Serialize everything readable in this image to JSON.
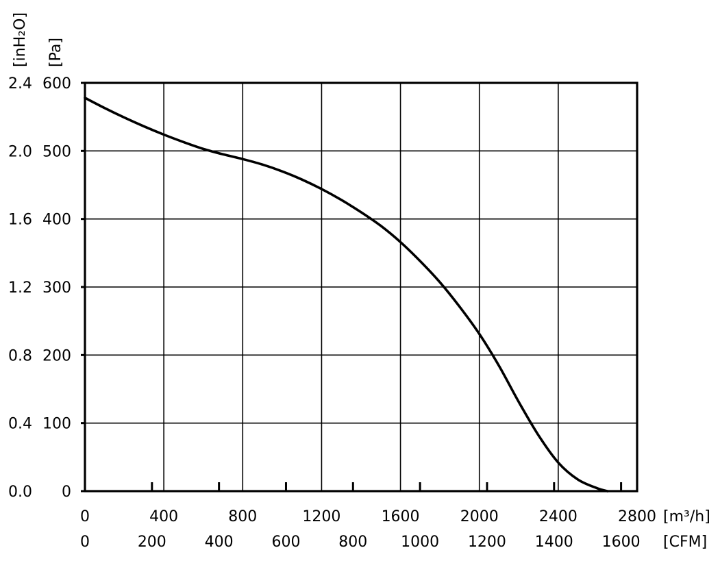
{
  "chart_data": {
    "type": "line",
    "title": "",
    "x_axis_primary": {
      "unit_label": "[m³/h]",
      "range": [
        0,
        2800
      ],
      "ticks": [
        "0",
        "400",
        "800",
        "1200",
        "1600",
        "2000",
        "2400",
        "2800"
      ],
      "tick_values": [
        0,
        400,
        800,
        1200,
        1600,
        2000,
        2400,
        2800
      ]
    },
    "x_axis_secondary": {
      "unit_label": "[CFM]",
      "ticks": [
        "0",
        "200",
        "400",
        "600",
        "800",
        "1000",
        "1200",
        "1400",
        "1600"
      ],
      "tick_values": [
        0,
        200,
        400,
        600,
        800,
        1000,
        1200,
        1400,
        1600
      ]
    },
    "y_axis_primary": {
      "unit_label": "[Pa]",
      "range": [
        0,
        600
      ],
      "ticks": [
        "0",
        "100",
        "200",
        "300",
        "400",
        "500",
        "600"
      ],
      "tick_values": [
        0,
        100,
        200,
        300,
        400,
        500,
        600
      ]
    },
    "y_axis_secondary": {
      "unit_label": "[inH₂O]",
      "ticks": [
        "0.0",
        "0.4",
        "0.8",
        "1.2",
        "1.6",
        "2.0",
        "2.4"
      ],
      "tick_values": [
        0.0,
        0.4,
        0.8,
        1.2,
        1.6,
        2.0,
        2.4
      ]
    },
    "grid": true,
    "series": [
      {
        "x": [
          0,
          100,
          200,
          300,
          400,
          500,
          600,
          700,
          800,
          900,
          1000,
          1100,
          1200,
          1300,
          1400,
          1500,
          1600,
          1700,
          1800,
          1900,
          2000,
          2100,
          2200,
          2300,
          2400,
          2500,
          2600,
          2650
        ],
        "y": [
          578,
          563,
          549,
          536,
          524,
          513,
          503,
          495,
          488,
          480,
          470,
          458,
          444,
          428,
          410,
          390,
          366,
          338,
          307,
          271,
          231,
          184,
          131,
          82,
          42,
          17,
          4,
          0
        ]
      }
    ]
  }
}
